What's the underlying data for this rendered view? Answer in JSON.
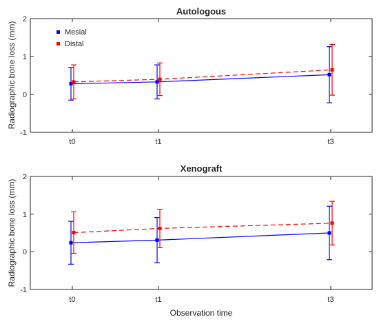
{
  "colors": {
    "mesial": "#0000ff",
    "distal": "#ff0000",
    "axis": "#262626"
  },
  "chart_data": [
    {
      "type": "line",
      "title": "Autologous",
      "xlabel": "",
      "ylabel": "Radiographic bone loss (mm)",
      "categories": [
        "t0",
        "t1",
        "t3"
      ],
      "x": [
        0,
        1,
        3
      ],
      "ylim": [
        -1,
        2
      ],
      "yticks": [
        "-1",
        "0",
        "1",
        "2"
      ],
      "legend": {
        "placement": "top-left"
      },
      "series": [
        {
          "name": "Mesial",
          "style": "solid",
          "values": [
            0.28,
            0.33,
            0.52
          ],
          "err": [
            0.43,
            0.45,
            0.74
          ]
        },
        {
          "name": "Distal",
          "style": "dashed",
          "values": [
            0.33,
            0.4,
            0.65
          ],
          "err": [
            0.45,
            0.43,
            0.67
          ]
        }
      ]
    },
    {
      "type": "line",
      "title": "Xenograft",
      "xlabel": "Observation time",
      "ylabel": "Radiographic bone loss (mm)",
      "categories": [
        "t0",
        "t1",
        "t3"
      ],
      "x": [
        0,
        1,
        3
      ],
      "ylim": [
        -1,
        2
      ],
      "yticks": [
        "-1",
        "0",
        "1",
        "2"
      ],
      "series": [
        {
          "name": "Mesial",
          "style": "solid",
          "values": [
            0.24,
            0.31,
            0.5
          ],
          "err": [
            0.57,
            0.6,
            0.71
          ]
        },
        {
          "name": "Distal",
          "style": "dashed",
          "values": [
            0.51,
            0.62,
            0.76
          ],
          "err": [
            0.55,
            0.51,
            0.58
          ]
        }
      ]
    }
  ]
}
